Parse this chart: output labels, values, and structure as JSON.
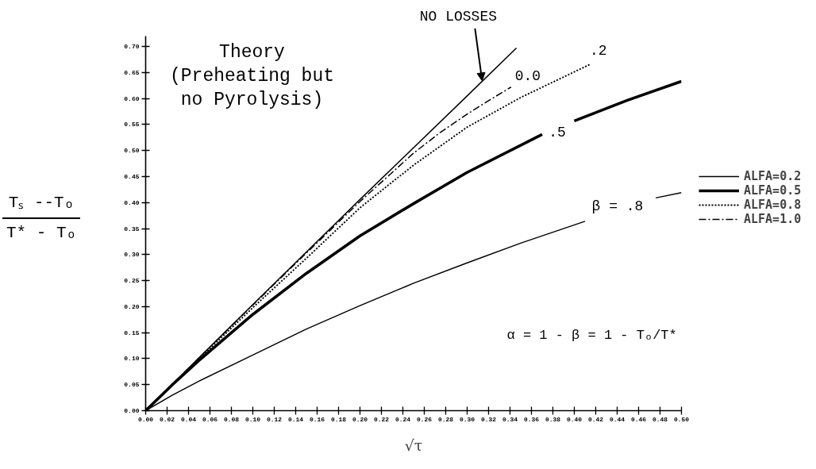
{
  "chart_data": {
    "type": "line",
    "xlabel": "√τ",
    "ylabel": "Tₛ --Tₒ\nT* - Tₒ",
    "xlim": [
      0,
      0.5
    ],
    "ylim": [
      0,
      0.72
    ],
    "xticks": [
      {
        "value": 0,
        "label": "0.00"
      },
      0.02,
      0.04,
      0.06,
      0.08,
      {
        "value": 0.1,
        "label": "0.10"
      },
      0.12,
      0.14,
      0.16,
      0.18,
      {
        "value": 0.2,
        "label": "0.20"
      },
      0.22,
      0.24,
      0.26,
      0.28,
      {
        "value": 0.3,
        "label": "0.30"
      },
      0.32,
      0.34,
      0.36,
      0.38,
      {
        "value": 0.4,
        "label": "0.40"
      },
      0.42,
      0.44,
      0.46,
      0.48,
      {
        "value": 0.5,
        "label": "0.50"
      }
    ],
    "yticks": [
      {
        "value": 0,
        "label": "0.00"
      },
      0.05,
      {
        "value": 0.1,
        "label": "0.10"
      },
      0.15,
      {
        "value": 0.2,
        "label": "0.20"
      },
      0.25,
      {
        "value": 0.3,
        "label": "0.30"
      },
      0.35,
      {
        "value": 0.4,
        "label": "0.40"
      },
      0.45,
      {
        "value": 0.5,
        "label": "0.50"
      },
      0.55,
      {
        "value": 0.6,
        "label": "0.60"
      },
      0.65,
      {
        "value": 0.7,
        "label": "0.70"
      }
    ],
    "legend": "right",
    "series": [
      {
        "color": "#000000",
        "line_style": "solid",
        "x": [
          0,
          0.1,
          0.2,
          0.3,
          0.346
        ],
        "values": [
          0,
          0.204,
          0.406,
          0.605,
          0.697
        ]
      },
      {
        "name": "ALFA=0.2",
        "color": "#000000",
        "line_style": "solid",
        "x": [
          0,
          0.025,
          0.05,
          0.1,
          0.15,
          0.2,
          0.25,
          0.3,
          0.35,
          0.41,
          0.443,
          0.476,
          0.5
        ],
        "values": [
          0,
          0.03,
          0.057,
          0.107,
          0.157,
          0.202,
          0.245,
          0.284,
          0.322,
          0.364,
          null,
          0.409,
          0.419
        ]
      },
      {
        "name": "ALFA=0.5",
        "color": "#000000",
        "line_style": "solid",
        "x": [
          0,
          0.025,
          0.05,
          0.1,
          0.15,
          0.2,
          0.25,
          0.3,
          0.37,
          0.385,
          0.4,
          0.45,
          0.5
        ],
        "values": [
          0,
          0.05,
          0.097,
          0.185,
          0.264,
          0.336,
          0.398,
          0.458,
          0.531,
          null,
          0.557,
          0.597,
          0.633
        ]
      },
      {
        "name": "ALFA=0.8",
        "color": "#000000",
        "line_style": "dotted",
        "x": [
          0,
          0.025,
          0.05,
          0.1,
          0.15,
          0.2,
          0.25,
          0.3,
          0.35,
          0.415
        ],
        "values": [
          0,
          0.05,
          0.1,
          0.198,
          0.293,
          0.39,
          0.472,
          0.545,
          0.602,
          0.666
        ]
      },
      {
        "name": "ALFA=1.0",
        "color": "#000000",
        "line_style": "dashdot",
        "x": [
          0,
          0.025,
          0.05,
          0.1,
          0.15,
          0.2,
          0.25,
          0.275,
          0.3,
          0.32,
          0.341
        ],
        "values": [
          0,
          0.051,
          0.102,
          0.203,
          0.303,
          0.402,
          0.495,
          0.535,
          0.57,
          0.596,
          0.622
        ]
      }
    ],
    "annotations": [
      {
        "text": "NO LOSSES",
        "x": 0.314,
        "y": 0.634
      },
      {
        "text": "0.0",
        "x": 0.341,
        "y": 0.622
      },
      {
        "text": ".2",
        "x": 0.415,
        "y": 0.666
      },
      {
        "text": ".5",
        "x": 0.37,
        "y": 0.531
      },
      {
        "text": "β = .8",
        "x": 0.41,
        "y": 0.364
      },
      "Theory\n(Preheating but\nno Pyrolysis)",
      "α = 1 - β = 1 - Tₒ/T*"
    ]
  }
}
